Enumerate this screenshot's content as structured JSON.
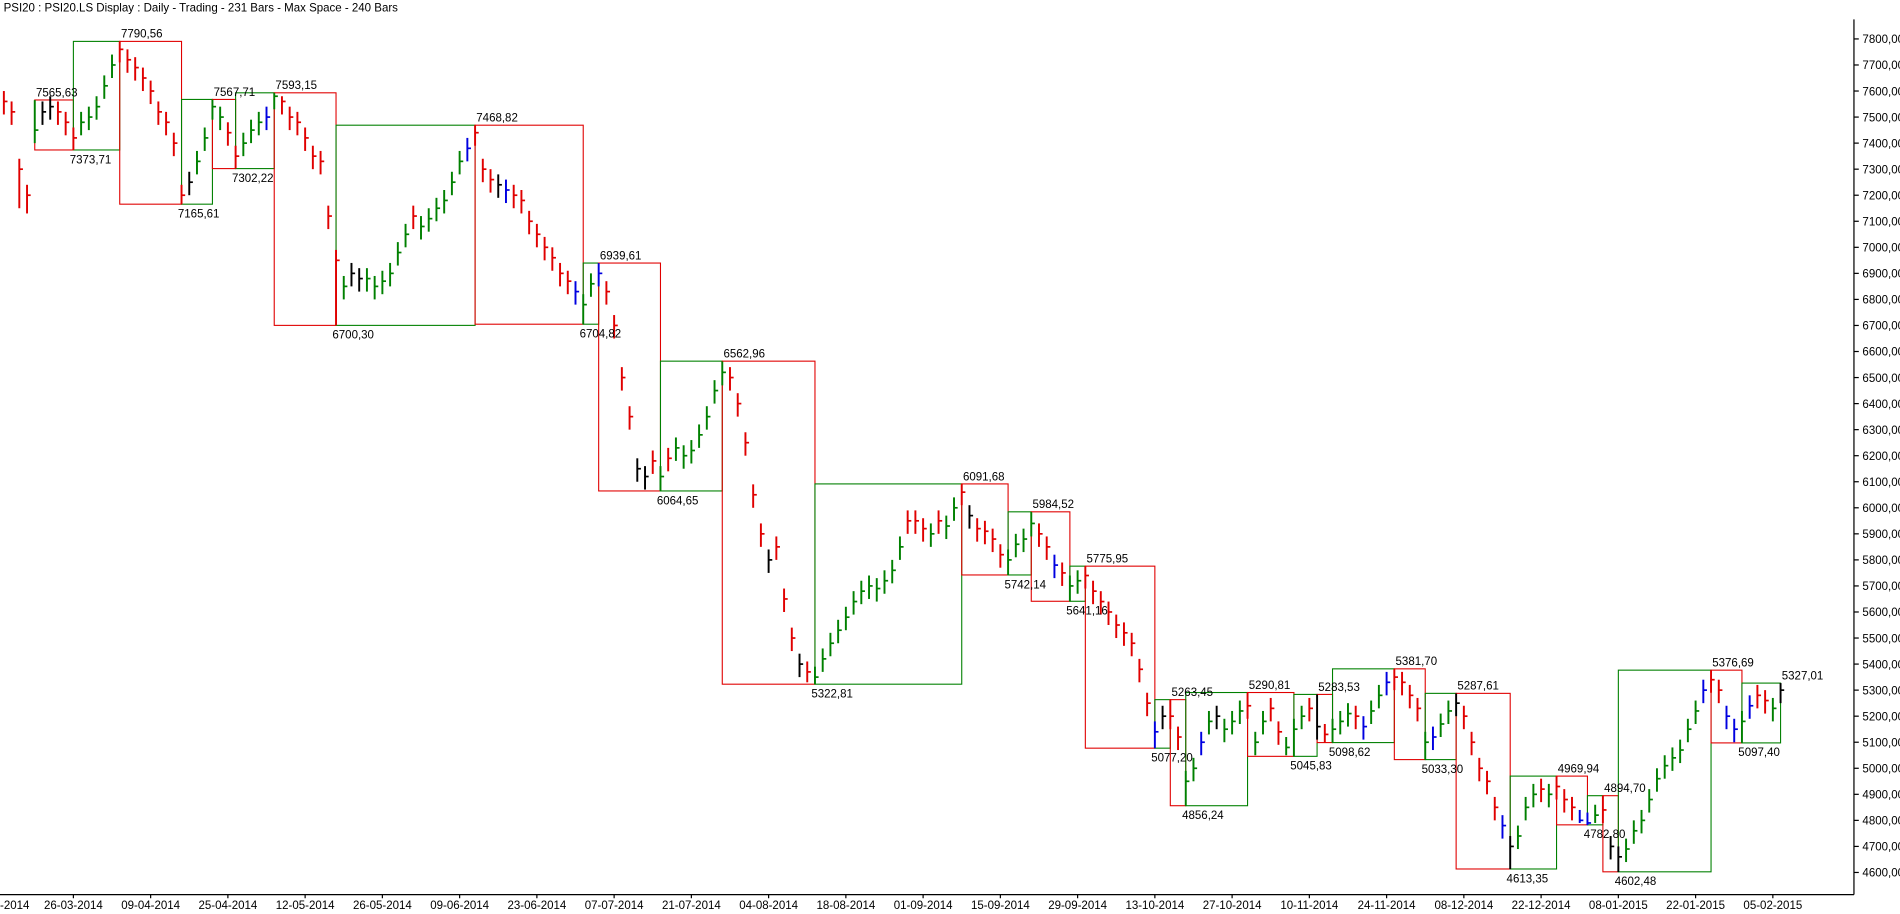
{
  "chart_data": {
    "type": "ohlc",
    "title": "PSI20 : PSI20.LS Display :  Daily  - Trading - 231 Bars  -  Max Space - 240 Bars",
    "ylim": [
      4515,
      7875
    ],
    "xlim": [
      -0.5,
      239.5
    ],
    "yticks": [
      {
        "value": 4600,
        "label": "4600,00"
      },
      {
        "value": 4700,
        "label": "4700,00"
      },
      {
        "value": 4800,
        "label": "4800,00"
      },
      {
        "value": 4900,
        "label": "4900,00"
      },
      {
        "value": 5000,
        "label": "5000,00"
      },
      {
        "value": 5100,
        "label": "5100,00"
      },
      {
        "value": 5200,
        "label": "5200,00"
      },
      {
        "value": 5300,
        "label": "5300,00"
      },
      {
        "value": 5400,
        "label": "5400,00"
      },
      {
        "value": 5500,
        "label": "5500,00"
      },
      {
        "value": 5600,
        "label": "5600,00"
      },
      {
        "value": 5700,
        "label": "5700,00"
      },
      {
        "value": 5800,
        "label": "5800,00"
      },
      {
        "value": 5900,
        "label": "5900,00"
      },
      {
        "value": 6000,
        "label": "6000,00"
      },
      {
        "value": 6100,
        "label": "6100,00"
      },
      {
        "value": 6200,
        "label": "6200,00"
      },
      {
        "value": 6300,
        "label": "6300,00"
      },
      {
        "value": 6400,
        "label": "6400,00"
      },
      {
        "value": 6500,
        "label": "6500,00"
      },
      {
        "value": 6600,
        "label": "6600,00"
      },
      {
        "value": 6700,
        "label": "6700,00"
      },
      {
        "value": 6800,
        "label": "6800,00"
      },
      {
        "value": 6900,
        "label": "6900,00"
      },
      {
        "value": 7000,
        "label": "7000,00"
      },
      {
        "value": 7100,
        "label": "7100,00"
      },
      {
        "value": 7200,
        "label": "7200,00"
      },
      {
        "value": 7300,
        "label": "7300,00"
      },
      {
        "value": 7400,
        "label": "7400,00"
      },
      {
        "value": 7500,
        "label": "7500,00"
      },
      {
        "value": 7600,
        "label": "7600,00"
      },
      {
        "value": 7700,
        "label": "7700,00"
      },
      {
        "value": 7800,
        "label": "7800,00"
      }
    ],
    "xticks": [
      {
        "value": -1,
        "label": "-2014"
      },
      {
        "value": 9,
        "label": "26-03-2014"
      },
      {
        "value": 19,
        "label": "09-04-2014"
      },
      {
        "value": 29,
        "label": "25-04-2014"
      },
      {
        "value": 39,
        "label": "12-05-2014"
      },
      {
        "value": 49,
        "label": "26-05-2014"
      },
      {
        "value": 59,
        "label": "09-06-2014"
      },
      {
        "value": 69,
        "label": "23-06-2014"
      },
      {
        "value": 79,
        "label": "07-07-2014"
      },
      {
        "value": 89,
        "label": "21-07-2014"
      },
      {
        "value": 99,
        "label": "04-08-2014"
      },
      {
        "value": 109,
        "label": "18-08-2014"
      },
      {
        "value": 119,
        "label": "01-09-2014"
      },
      {
        "value": 129,
        "label": "15-09-2014"
      },
      {
        "value": 139,
        "label": "29-09-2014"
      },
      {
        "value": 149,
        "label": "13-10-2014"
      },
      {
        "value": 159,
        "label": "27-10-2014"
      },
      {
        "value": 169,
        "label": "10-11-2014"
      },
      {
        "value": 179,
        "label": "24-11-2014"
      },
      {
        "value": 189,
        "label": "08-12-2014"
      },
      {
        "value": 199,
        "label": "22-12-2014"
      },
      {
        "value": 209,
        "label": "08-01-2015"
      },
      {
        "value": 219,
        "label": "22-01-2015"
      },
      {
        "value": 229,
        "label": "05-02-2015"
      }
    ],
    "palette": {
      "r": "#e00000",
      "g": "#008000",
      "k": "#000000",
      "b": "#0000e0"
    },
    "bars": {
      "colors": "rrrrgkkrrrgggggrrrrrrrrrkggggrrgggbgrrrrrrrrgkkggggggrggggggbrrrkbrrrrrrrrbggbrrrrkkrgrgggggggrrrrrkrrrkrggggggggggggrrrgrggrkrrrrggggrrbrggrrrrrrrrrbkrrggbgkgggrggrrgggrkrgggrbggbrrrrgbggkrrrrrbkgggrgrrrbbgrkkggggggggggbrrbbgbrrg",
      "high": [
        7600,
        7560,
        7340,
        7240,
        7565,
        7560,
        7580,
        7560,
        7520,
        7460,
        7520,
        7540,
        7580,
        7660,
        7740,
        7790,
        7760,
        7730,
        7690,
        7640,
        7560,
        7520,
        7440,
        7240,
        7290,
        7370,
        7460,
        7567,
        7540,
        7480,
        7390,
        7440,
        7490,
        7520,
        7540,
        7593,
        7580,
        7540,
        7520,
        7460,
        7390,
        7370,
        7160,
        6990,
        6890,
        6940,
        6920,
        6920,
        6890,
        6910,
        6940,
        7020,
        7090,
        7160,
        7120,
        7150,
        7190,
        7220,
        7290,
        7370,
        7420,
        7468,
        7340,
        7300,
        7280,
        7260,
        7240,
        7220,
        7140,
        7090,
        7040,
        7000,
        6940,
        6910,
        6870,
        6820,
        6900,
        6939,
        6870,
        6740,
        6540,
        6390,
        6190,
        6160,
        6220,
        6160,
        6230,
        6270,
        6240,
        6260,
        6320,
        6390,
        6490,
        6562,
        6540,
        6440,
        6290,
        6090,
        5940,
        5840,
        5890,
        5690,
        5540,
        5440,
        5410,
        5390,
        5460,
        5520,
        5570,
        5620,
        5680,
        5720,
        5740,
        5730,
        5760,
        5800,
        5890,
        5990,
        5990,
        5960,
        5940,
        5990,
        5970,
        6040,
        6091,
        6010,
        5960,
        5950,
        5920,
        5860,
        5840,
        5900,
        5920,
        5984,
        5940,
        5890,
        5820,
        5790,
        5740,
        5760,
        5775,
        5720,
        5680,
        5640,
        5590,
        5560,
        5520,
        5420,
        5290,
        5180,
        5240,
        5263,
        5160,
        4990,
        5040,
        5140,
        5220,
        5240,
        5190,
        5220,
        5260,
        5290,
        5140,
        5220,
        5270,
        5180,
        5120,
        5190,
        5240,
        5270,
        5283,
        5170,
        5190,
        5220,
        5250,
        5240,
        5200,
        5260,
        5320,
        5370,
        5381,
        5370,
        5320,
        5270,
        5140,
        5160,
        5210,
        5260,
        5287,
        5240,
        5140,
        5040,
        4990,
        4890,
        4820,
        4740,
        4780,
        4890,
        4940,
        4960,
        4940,
        4969,
        4920,
        4890,
        4840,
        4830,
        4860,
        4894,
        4740,
        4700,
        4730,
        4800,
        4840,
        4920,
        5000,
        5050,
        5080,
        5110,
        5190,
        5260,
        5340,
        5376,
        5340,
        5240,
        5190,
        5220,
        5280,
        5320,
        5300,
        5270,
        5327
      ],
      "low": [
        7510,
        7470,
        7150,
        7130,
        7400,
        7470,
        7490,
        7470,
        7430,
        7373,
        7430,
        7450,
        7490,
        7570,
        7650,
        7710,
        7670,
        7640,
        7600,
        7550,
        7470,
        7430,
        7350,
        7165,
        7200,
        7280,
        7370,
        7490,
        7450,
        7390,
        7302,
        7350,
        7400,
        7430,
        7450,
        7530,
        7510,
        7450,
        7430,
        7370,
        7300,
        7280,
        7070,
        6700,
        6800,
        6850,
        6830,
        6830,
        6800,
        6820,
        6850,
        6930,
        7000,
        7070,
        7030,
        7060,
        7100,
        7130,
        7200,
        7280,
        7330,
        7390,
        7250,
        7210,
        7190,
        7170,
        7150,
        7130,
        7050,
        7000,
        6950,
        6910,
        6850,
        6820,
        6780,
        6704,
        6810,
        6850,
        6780,
        6650,
        6450,
        6300,
        6100,
        6070,
        6130,
        6064,
        6140,
        6180,
        6150,
        6170,
        6230,
        6300,
        6400,
        6470,
        6450,
        6350,
        6200,
        6000,
        5850,
        5750,
        5800,
        5600,
        5450,
        5350,
        5330,
        5322,
        5370,
        5430,
        5480,
        5530,
        5590,
        5630,
        5650,
        5640,
        5670,
        5710,
        5800,
        5900,
        5900,
        5870,
        5850,
        5900,
        5880,
        5950,
        6010,
        5920,
        5870,
        5860,
        5830,
        5770,
        5742,
        5810,
        5830,
        5890,
        5850,
        5800,
        5730,
        5700,
        5641,
        5670,
        5690,
        5630,
        5590,
        5550,
        5500,
        5470,
        5430,
        5330,
        5200,
        5077,
        5150,
        5150,
        5070,
        4856,
        4950,
        5050,
        5130,
        5150,
        5100,
        5130,
        5170,
        5190,
        5050,
        5130,
        5180,
        5090,
        5050,
        5045,
        5150,
        5180,
        5110,
        5100,
        5098,
        5130,
        5160,
        5150,
        5110,
        5170,
        5230,
        5280,
        5300,
        5280,
        5230,
        5180,
        5033,
        5070,
        5120,
        5170,
        5200,
        5150,
        5050,
        4950,
        4900,
        4800,
        4730,
        4613,
        4690,
        4800,
        4850,
        4870,
        4850,
        4880,
        4830,
        4800,
        4790,
        4782,
        4790,
        4790,
        4650,
        4602,
        4640,
        4710,
        4750,
        4830,
        4910,
        4960,
        4990,
        5020,
        5100,
        5170,
        5250,
        5290,
        5250,
        5150,
        5100,
        5097,
        5190,
        5230,
        5210,
        5180,
        5250
      ],
      "close": [
        7560,
        7520,
        7300,
        7200,
        7450,
        7520,
        7540,
        7520,
        7480,
        7420,
        7480,
        7500,
        7540,
        7620,
        7700,
        7760,
        7720,
        7690,
        7650,
        7600,
        7520,
        7480,
        7400,
        7200,
        7250,
        7330,
        7420,
        7540,
        7500,
        7440,
        7350,
        7400,
        7450,
        7480,
        7500,
        7580,
        7560,
        7500,
        7480,
        7420,
        7350,
        7330,
        7120,
        6950,
        6850,
        6900,
        6880,
        6880,
        6850,
        6870,
        6900,
        6980,
        7050,
        7120,
        7080,
        7110,
        7150,
        7180,
        7250,
        7330,
        7380,
        7440,
        7300,
        7260,
        7240,
        7220,
        7200,
        7180,
        7100,
        7050,
        7000,
        6960,
        6900,
        6870,
        6830,
        6780,
        6860,
        6900,
        6830,
        6700,
        6500,
        6350,
        6150,
        6120,
        6180,
        6120,
        6190,
        6230,
        6200,
        6220,
        6280,
        6350,
        6450,
        6520,
        6500,
        6400,
        6250,
        6050,
        5900,
        5800,
        5850,
        5650,
        5500,
        5400,
        5370,
        5350,
        5420,
        5480,
        5530,
        5580,
        5640,
        5680,
        5700,
        5690,
        5720,
        5760,
        5850,
        5950,
        5950,
        5920,
        5900,
        5950,
        5930,
        6000,
        6060,
        5970,
        5920,
        5910,
        5880,
        5820,
        5800,
        5860,
        5880,
        5940,
        5900,
        5850,
        5780,
        5750,
        5700,
        5720,
        5740,
        5680,
        5640,
        5600,
        5550,
        5520,
        5480,
        5380,
        5250,
        5140,
        5200,
        5200,
        5120,
        4950,
        5000,
        5100,
        5180,
        5200,
        5150,
        5180,
        5220,
        5240,
        5100,
        5180,
        5230,
        5140,
        5080,
        5150,
        5200,
        5230,
        5160,
        5130,
        5150,
        5180,
        5210,
        5200,
        5160,
        5220,
        5280,
        5330,
        5350,
        5330,
        5280,
        5230,
        5100,
        5120,
        5170,
        5220,
        5250,
        5200,
        5100,
        5000,
        4950,
        4850,
        4780,
        4700,
        4740,
        4850,
        4900,
        4920,
        4900,
        4930,
        4880,
        4850,
        4800,
        4790,
        4820,
        4840,
        4700,
        4660,
        4690,
        4760,
        4800,
        4880,
        4960,
        5010,
        5040,
        5070,
        5150,
        5220,
        5300,
        5340,
        5300,
        5200,
        5150,
        5180,
        5240,
        5280,
        5260,
        5230,
        5300
      ]
    },
    "pivots": [
      {
        "index": 4,
        "value": 7565.63,
        "label": "7565,63",
        "position": "above"
      },
      {
        "index": 9,
        "value": 7373.71,
        "label": "7373,71",
        "position": "below"
      },
      {
        "index": 15,
        "value": 7790.56,
        "label": "7790,56",
        "position": "above"
      },
      {
        "index": 23,
        "value": 7165.61,
        "label": "7165,61",
        "position": "below"
      },
      {
        "index": 27,
        "value": 7567.71,
        "label": "7567,71",
        "position": "above"
      },
      {
        "index": 30,
        "value": 7302.22,
        "label": "7302,22",
        "position": "below"
      },
      {
        "index": 35,
        "value": 7593.15,
        "label": "7593,15",
        "position": "above"
      },
      {
        "index": 43,
        "value": 6700.3,
        "label": "6700,30",
        "position": "below"
      },
      {
        "index": 61,
        "value": 7468.82,
        "label": "7468,82",
        "position": "above"
      },
      {
        "index": 75,
        "value": 6704.82,
        "label": "6704,82",
        "position": "below"
      },
      {
        "index": 77,
        "value": 6939.61,
        "label": "6939,61",
        "position": "above"
      },
      {
        "index": 85,
        "value": 6064.65,
        "label": "6064,65",
        "position": "below"
      },
      {
        "index": 93,
        "value": 6562.96,
        "label": "6562,96",
        "position": "above"
      },
      {
        "index": 105,
        "value": 5322.81,
        "label": "5322,81",
        "position": "below"
      },
      {
        "index": 124,
        "value": 6091.68,
        "label": "6091,68",
        "position": "above"
      },
      {
        "index": 130,
        "value": 5742.14,
        "label": "5742,14",
        "position": "below"
      },
      {
        "index": 133,
        "value": 5984.52,
        "label": "5984,52",
        "position": "above"
      },
      {
        "index": 138,
        "value": 5641.16,
        "label": "5641,16",
        "position": "below"
      },
      {
        "index": 140,
        "value": 5775.95,
        "label": "5775,95",
        "position": "above"
      },
      {
        "index": 149,
        "value": 5077.2,
        "label": "5077,20",
        "position": "below"
      },
      {
        "index": 151,
        "value": 5263.45,
        "label": "5263,45",
        "position": "above"
      },
      {
        "index": 153,
        "value": 4856.24,
        "label": "4856,24",
        "position": "below"
      },
      {
        "index": 161,
        "value": 5290.81,
        "label": "5290,81",
        "position": "above"
      },
      {
        "index": 167,
        "value": 5045.83,
        "label": "5045,83",
        "position": "below"
      },
      {
        "index": 170,
        "value": 5283.53,
        "label": "5283,53",
        "position": "above"
      },
      {
        "index": 172,
        "value": 5098.62,
        "label": "5098,62",
        "position": "below"
      },
      {
        "index": 180,
        "value": 5381.7,
        "label": "5381,70",
        "position": "above"
      },
      {
        "index": 184,
        "value": 5033.3,
        "label": "5033,30",
        "position": "below"
      },
      {
        "index": 188,
        "value": 5287.61,
        "label": "5287,61",
        "position": "above"
      },
      {
        "index": 195,
        "value": 4613.35,
        "label": "4613,35",
        "position": "below"
      },
      {
        "index": 201,
        "value": 4969.94,
        "label": "4969,94",
        "position": "above"
      },
      {
        "index": 205,
        "value": 4782.8,
        "label": "4782,80",
        "position": "below"
      },
      {
        "index": 207,
        "value": 4894.7,
        "label": "4894,70",
        "position": "above"
      },
      {
        "index": 209,
        "value": 4602.48,
        "label": "4602,48",
        "position": "below"
      },
      {
        "index": 221,
        "value": 5376.69,
        "label": "5376,69",
        "position": "above"
      },
      {
        "index": 225,
        "value": 5097.4,
        "label": "5097,40",
        "position": "below"
      },
      {
        "index": 230,
        "value": 5327.01,
        "label": "5327,01",
        "position": "above"
      }
    ]
  }
}
